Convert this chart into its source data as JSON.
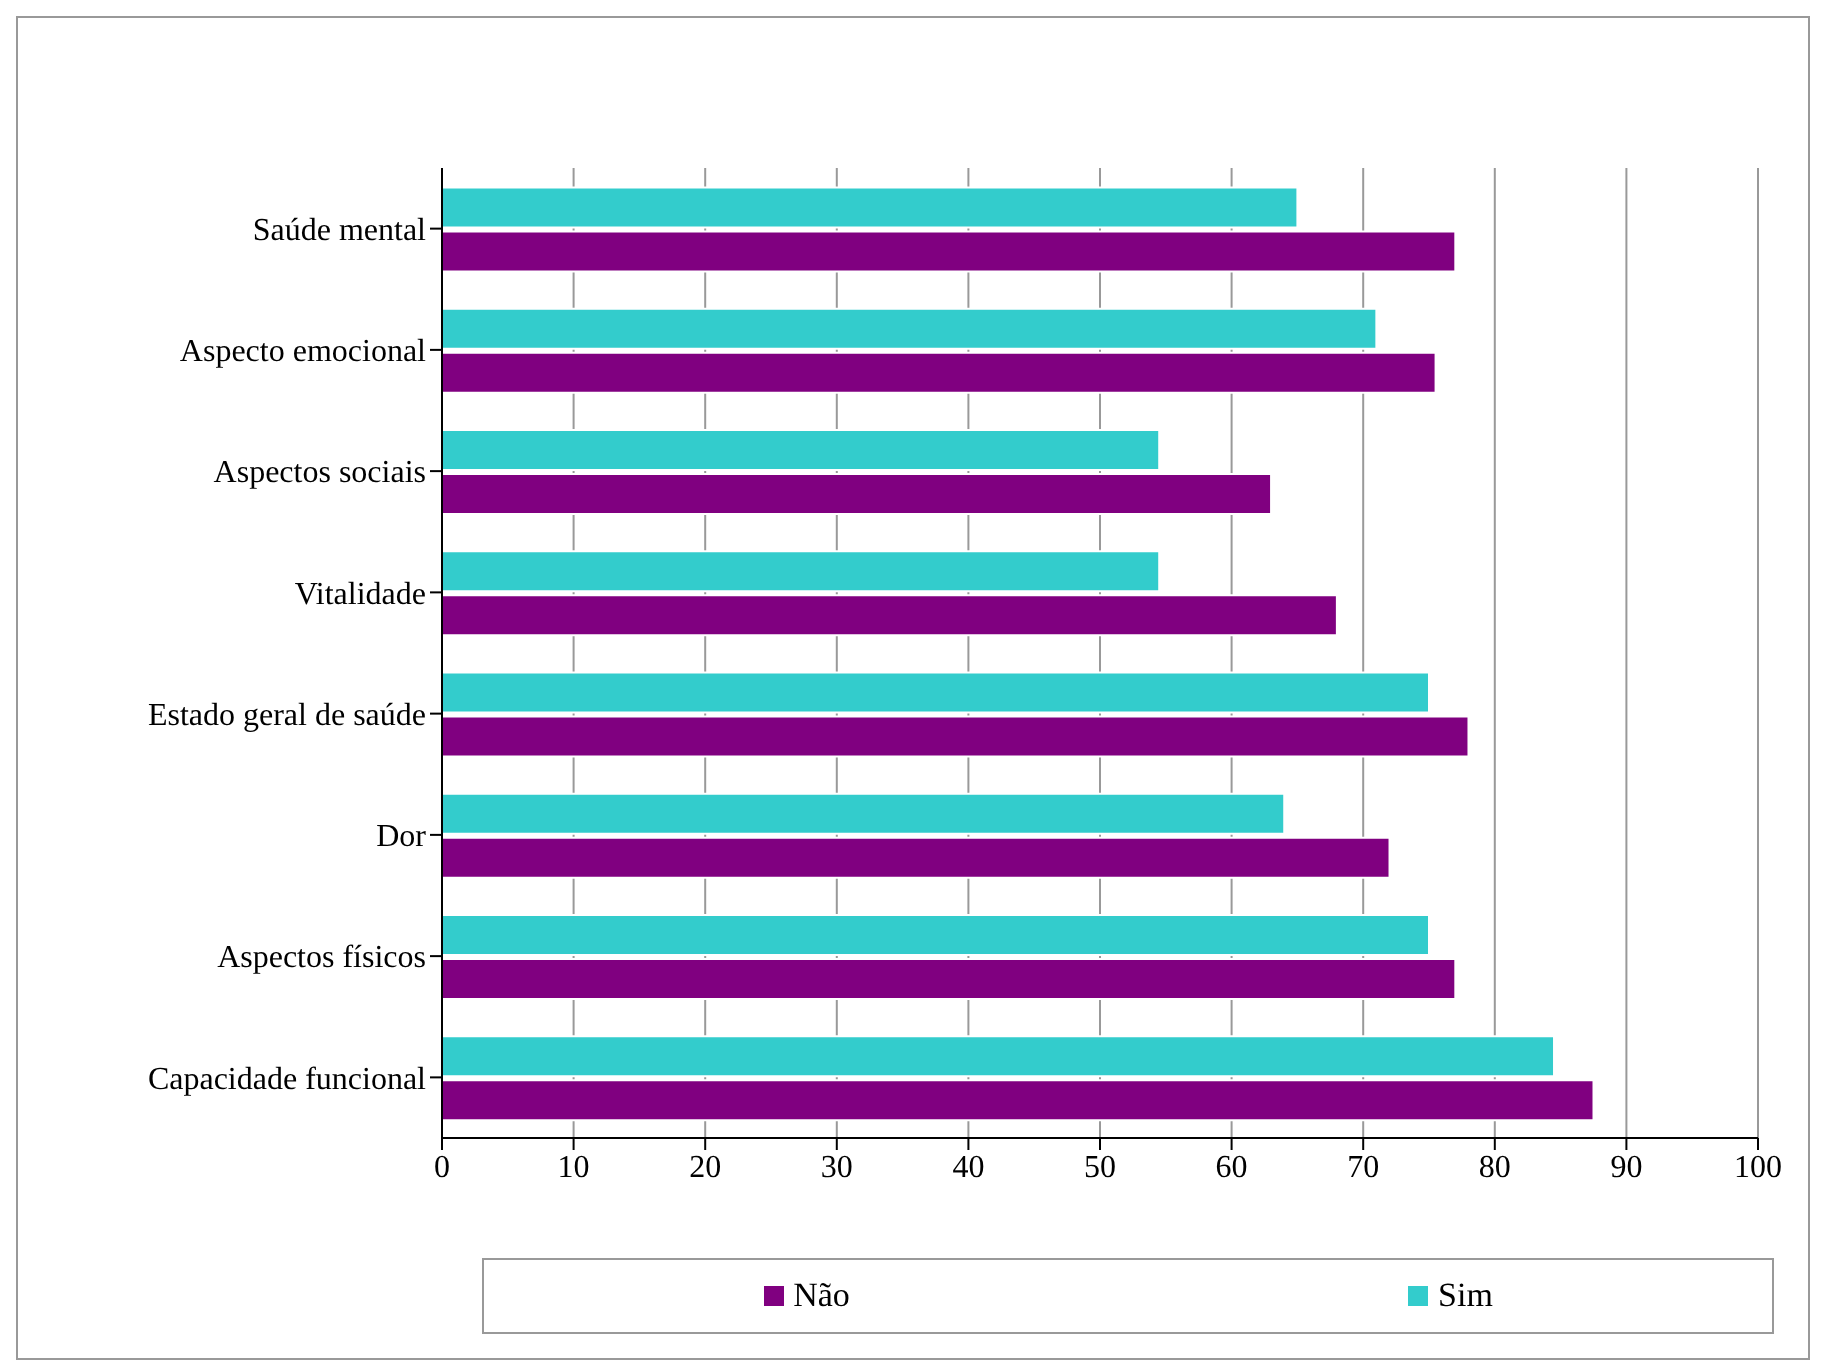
{
  "chart_data": {
    "type": "bar",
    "orientation": "horizontal",
    "categories": [
      "Saúde mental",
      "Aspecto emocional",
      "Aspectos sociais",
      "Vitalidade",
      "Estado geral de saúde",
      "Dor",
      "Aspectos físicos",
      "Capacidade funcional"
    ],
    "series": [
      {
        "name": "Não",
        "color": "#800080",
        "values": [
          77,
          75.5,
          63,
          68,
          78,
          72,
          77,
          87.5
        ]
      },
      {
        "name": "Sim",
        "color": "#33cccc",
        "values": [
          65,
          71,
          54.5,
          54.5,
          75,
          64,
          75,
          84.5
        ]
      }
    ],
    "xlim": [
      0,
      100
    ],
    "xticks": [
      0,
      10,
      20,
      30,
      40,
      50,
      60,
      70,
      80,
      90,
      100
    ],
    "grid": "x",
    "legend": "bottom"
  }
}
